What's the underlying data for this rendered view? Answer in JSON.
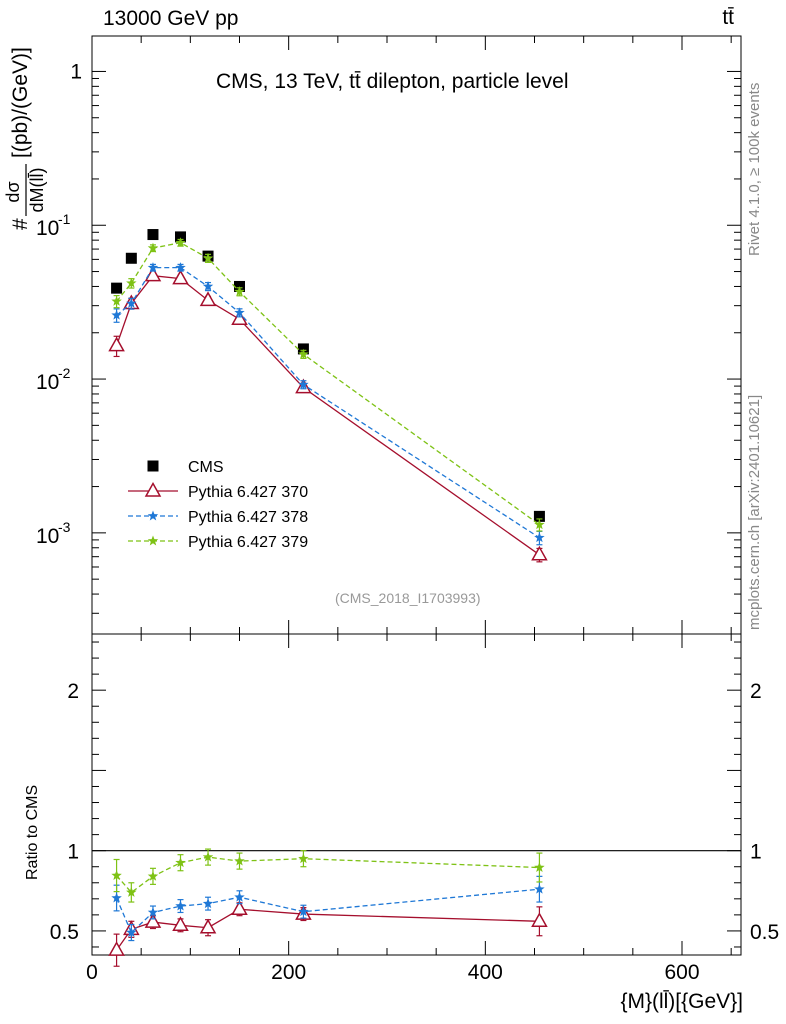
{
  "header": {
    "left": "13000 GeV pp",
    "right": "tt̄"
  },
  "side_labels": {
    "rivet": "Rivet 4.1.0, ≥ 100k events",
    "mcplots": "mcplots.cern.ch [arXiv:2401.10621]"
  },
  "chart_data": [
    {
      "type": "scatter",
      "panel": "main",
      "title": "CMS, 13 TeV, tt̄ dilepton, particle level",
      "ylabel": "dσ/dM(ll̄) [(pb)/(GeV)]",
      "ylabel_prefix": "#",
      "ylabel_num": "dσ",
      "ylabel_den": "dM(ll̄)",
      "ylabel_unit": "[(pb)/(GeV)]",
      "yscale": "log",
      "ylim": [
        0.00022,
        1.7
      ],
      "xlim": [
        0,
        660
      ],
      "y_tick_labels": [
        "1",
        "10",
        "-1",
        "10",
        "-2",
        "10",
        "-3"
      ],
      "y_ticks": [
        {
          "value": 1,
          "label": "1"
        },
        {
          "value": 0.1,
          "base": "10",
          "exp": "-1"
        },
        {
          "value": 0.01,
          "base": "10",
          "exp": "-2"
        },
        {
          "value": 0.001,
          "base": "10",
          "exp": "-3"
        }
      ],
      "reference_label": "(CMS_2018_I1703993)",
      "legend_position": "bottom-left",
      "legend": [
        "CMS",
        "Pythia 6.427 370",
        "Pythia 6.427 378",
        "Pythia 6.427 379"
      ],
      "x": [
        25,
        40,
        62,
        90,
        118,
        150,
        215,
        455
      ],
      "series": [
        {
          "name": "CMS",
          "color": "#000000",
          "marker": "square",
          "line": "none",
          "values": [
            0.039,
            0.061,
            0.087,
            0.084,
            0.063,
            0.04,
            0.0157,
            0.00128
          ]
        },
        {
          "name": "Pythia 6.427 370",
          "color": "#a50f2d",
          "marker": "triangle-open",
          "line": "solid",
          "values": [
            0.0165,
            0.031,
            0.047,
            0.045,
            0.0325,
            0.0245,
            0.0088,
            0.00072
          ],
          "err_rel": [
            0.15,
            0.08,
            0.05,
            0.05,
            0.06,
            0.06,
            0.06,
            0.1
          ]
        },
        {
          "name": "Pythia 6.427 378",
          "color": "#1f78d6",
          "marker": "star",
          "line": "dashed",
          "values": [
            0.026,
            0.031,
            0.053,
            0.053,
            0.04,
            0.027,
            0.0092,
            0.00093
          ],
          "err_rel": [
            0.1,
            0.08,
            0.05,
            0.05,
            0.06,
            0.06,
            0.06,
            0.1
          ]
        },
        {
          "name": "Pythia 6.427 379",
          "color": "#7ec215",
          "marker": "star",
          "line": "dashed",
          "values": [
            0.032,
            0.042,
            0.071,
            0.077,
            0.061,
            0.037,
            0.0145,
            0.00113
          ],
          "err_rel": [
            0.09,
            0.07,
            0.05,
            0.05,
            0.06,
            0.06,
            0.06,
            0.09
          ]
        }
      ]
    },
    {
      "type": "line",
      "panel": "ratio",
      "ylabel": "Ratio to CMS",
      "xlabel": "{M}(ll̄)[{GeV}]",
      "ylim": [
        0.35,
        2.35
      ],
      "xlim": [
        0,
        660
      ],
      "y_tick_labels": [
        "0.5",
        "1",
        "2"
      ],
      "x_tick_labels": [
        "0",
        "200",
        "400",
        "600"
      ],
      "x_ticks": [
        0,
        200,
        400,
        600
      ],
      "y_ticks": [
        0.5,
        1,
        2
      ],
      "x": [
        25,
        40,
        62,
        90,
        118,
        150,
        215,
        455
      ],
      "series": [
        {
          "name": "Pythia 6.427 370",
          "color": "#a50f2d",
          "marker": "triangle-open",
          "line": "solid",
          "values": [
            0.38,
            0.51,
            0.555,
            0.535,
            0.52,
            0.635,
            0.605,
            0.56
          ],
          "err": [
            0.1,
            0.05,
            0.04,
            0.04,
            0.05,
            0.04,
            0.04,
            0.09
          ]
        },
        {
          "name": "Pythia 6.427 378",
          "color": "#1f78d6",
          "marker": "star",
          "line": "dashed",
          "values": [
            0.705,
            0.49,
            0.615,
            0.655,
            0.67,
            0.71,
            0.62,
            0.76
          ],
          "err": [
            0.08,
            0.05,
            0.04,
            0.04,
            0.04,
            0.04,
            0.04,
            0.08
          ]
        },
        {
          "name": "Pythia 6.427 379",
          "color": "#7ec215",
          "marker": "star",
          "line": "dashed",
          "values": [
            0.845,
            0.74,
            0.84,
            0.925,
            0.96,
            0.935,
            0.95,
            0.895
          ],
          "err": [
            0.1,
            0.06,
            0.05,
            0.05,
            0.05,
            0.05,
            0.05,
            0.09
          ]
        }
      ]
    }
  ]
}
